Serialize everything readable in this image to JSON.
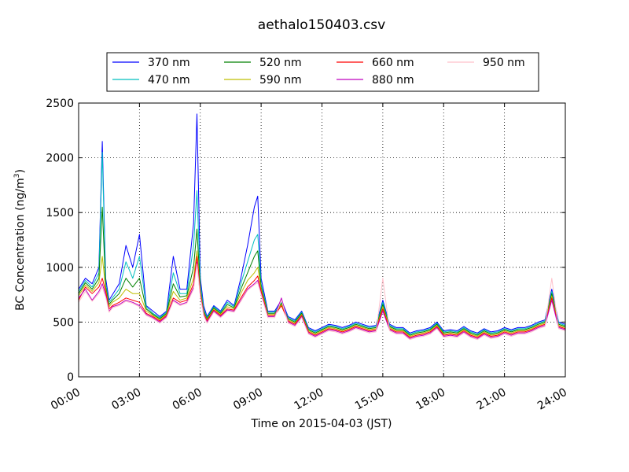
{
  "chart_data": {
    "type": "line",
    "title": "aethalo150403.csv",
    "xlabel": "Time on 2015-04-03 (JST)",
    "ylabel_main": "BC Concentration (ng/m",
    "ylabel_sup": "3",
    "ylabel_close": ")",
    "xlim": [
      "00:00",
      "24:00"
    ],
    "ylim": [
      0,
      2500
    ],
    "grid": true,
    "legend_position": "top",
    "x_ticks": [
      "00:00",
      "03:00",
      "06:00",
      "09:00",
      "12:00",
      "15:00",
      "18:00",
      "21:00",
      "24:00"
    ],
    "y_ticks": [
      "0",
      "500",
      "1000",
      "1500",
      "2000",
      "2500"
    ],
    "x": [
      "00:00",
      "00:20",
      "00:40",
      "01:00",
      "01:10",
      "01:20",
      "01:30",
      "01:40",
      "02:00",
      "02:20",
      "02:40",
      "03:00",
      "03:20",
      "03:40",
      "04:00",
      "04:20",
      "04:40",
      "05:00",
      "05:20",
      "05:40",
      "05:50",
      "06:00",
      "06:10",
      "06:20",
      "06:40",
      "07:00",
      "07:20",
      "07:40",
      "08:00",
      "08:20",
      "08:40",
      "08:50",
      "09:00",
      "09:20",
      "09:40",
      "10:00",
      "10:20",
      "10:40",
      "11:00",
      "11:20",
      "11:40",
      "12:00",
      "12:20",
      "12:40",
      "13:00",
      "13:20",
      "13:40",
      "14:00",
      "14:20",
      "14:40",
      "15:00",
      "15:20",
      "15:40",
      "16:00",
      "16:20",
      "16:40",
      "17:00",
      "17:20",
      "17:40",
      "18:00",
      "18:20",
      "18:40",
      "19:00",
      "19:20",
      "19:40",
      "20:00",
      "20:20",
      "20:40",
      "21:00",
      "21:20",
      "21:40",
      "22:00",
      "22:20",
      "22:40",
      "23:00",
      "23:20",
      "23:40",
      "24:00"
    ],
    "series": [
      {
        "name": "370 nm",
        "color": "#0000ff",
        "values": [
          800,
          900,
          850,
          1000,
          2150,
          900,
          700,
          750,
          850,
          1200,
          1000,
          1300,
          650,
          600,
          550,
          600,
          1100,
          800,
          800,
          1400,
          2400,
          900,
          650,
          550,
          650,
          600,
          700,
          650,
          900,
          1200,
          1550,
          1650,
          900,
          600,
          600,
          700,
          550,
          520,
          600,
          450,
          420,
          450,
          480,
          470,
          450,
          470,
          500,
          480,
          460,
          470,
          700,
          480,
          450,
          450,
          400,
          420,
          430,
          450,
          500,
          420,
          430,
          420,
          460,
          420,
          400,
          440,
          410,
          420,
          450,
          430,
          450,
          450,
          470,
          500,
          520,
          800,
          500,
          480
        ]
      },
      {
        "name": "470 nm",
        "color": "#00bfbf",
        "values": [
          780,
          880,
          820,
          950,
          2050,
          850,
          680,
          720,
          800,
          1050,
          900,
          1100,
          640,
          580,
          540,
          590,
          950,
          760,
          760,
          1200,
          1700,
          850,
          620,
          540,
          640,
          590,
          680,
          640,
          850,
          1050,
          1250,
          1300,
          850,
          590,
          590,
          680,
          540,
          510,
          590,
          440,
          410,
          440,
          470,
          460,
          440,
          460,
          490,
          470,
          450,
          460,
          680,
          470,
          440,
          440,
          390,
          410,
          420,
          440,
          490,
          410,
          420,
          410,
          450,
          410,
          390,
          430,
          400,
          410,
          440,
          420,
          440,
          440,
          460,
          490,
          510,
          780,
          490,
          470
        ]
      },
      {
        "name": "520 nm",
        "color": "#008000",
        "values": [
          760,
          860,
          800,
          900,
          1550,
          820,
          660,
          700,
          760,
          900,
          820,
          900,
          620,
          570,
          530,
          580,
          850,
          730,
          740,
          1000,
          1350,
          800,
          600,
          530,
          630,
          580,
          660,
          630,
          800,
          950,
          1100,
          1150,
          820,
          580,
          580,
          670,
          530,
          500,
          580,
          430,
          400,
          430,
          460,
          450,
          430,
          450,
          480,
          460,
          440,
          450,
          660,
          460,
          430,
          430,
          380,
          400,
          410,
          430,
          480,
          400,
          410,
          400,
          440,
          400,
          380,
          420,
          390,
          400,
          430,
          410,
          430,
          430,
          450,
          480,
          500,
          760,
          480,
          460
        ]
      },
      {
        "name": "590 nm",
        "color": "#bfbf00",
        "values": [
          740,
          840,
          780,
          860,
          1100,
          800,
          640,
          680,
          720,
          800,
          760,
          760,
          600,
          560,
          520,
          570,
          780,
          700,
          720,
          900,
          1150,
          780,
          590,
          520,
          620,
          570,
          640,
          620,
          760,
          880,
          950,
          1000,
          800,
          570,
          570,
          660,
          520,
          490,
          570,
          420,
          390,
          420,
          450,
          440,
          420,
          440,
          470,
          450,
          430,
          440,
          640,
          450,
          420,
          420,
          370,
          390,
          400,
          420,
          470,
          390,
          400,
          390,
          430,
          390,
          370,
          410,
          380,
          390,
          420,
          400,
          420,
          420,
          440,
          470,
          490,
          740,
          470,
          450
        ]
      },
      {
        "name": "660 nm",
        "color": "#ff0000",
        "values": [
          700,
          820,
          760,
          820,
          900,
          780,
          620,
          650,
          680,
          720,
          700,
          680,
          580,
          550,
          510,
          560,
          720,
          680,
          700,
          850,
          1100,
          760,
          580,
          510,
          610,
          560,
          620,
          610,
          720,
          820,
          880,
          920,
          780,
          560,
          560,
          650,
          510,
          480,
          560,
          410,
          380,
          410,
          440,
          430,
          410,
          430,
          460,
          440,
          420,
          430,
          620,
          440,
          410,
          410,
          360,
          380,
          390,
          410,
          460,
          380,
          390,
          380,
          420,
          380,
          360,
          400,
          370,
          380,
          410,
          390,
          410,
          410,
          430,
          460,
          480,
          720,
          460,
          440
        ]
      },
      {
        "name": "880 nm",
        "color": "#bf00bf",
        "values": [
          720,
          800,
          700,
          780,
          850,
          750,
          600,
          640,
          660,
          700,
          680,
          650,
          570,
          540,
          500,
          550,
          700,
          660,
          680,
          820,
          1050,
          740,
          570,
          500,
          600,
          550,
          610,
          600,
          700,
          800,
          850,
          880,
          760,
          550,
          550,
          720,
          500,
          470,
          550,
          400,
          370,
          400,
          430,
          420,
          400,
          420,
          450,
          430,
          410,
          420,
          600,
          430,
          400,
          400,
          350,
          370,
          380,
          400,
          450,
          370,
          380,
          370,
          410,
          370,
          350,
          390,
          360,
          370,
          400,
          380,
          400,
          400,
          420,
          450,
          470,
          700,
          450,
          430
        ]
      },
      {
        "name": "950 nm",
        "color": "#ffc0cb",
        "values": [
          680,
          780,
          690,
          760,
          820,
          730,
          590,
          630,
          650,
          690,
          670,
          640,
          560,
          530,
          490,
          540,
          690,
          650,
          670,
          800,
          1030,
          730,
          560,
          490,
          590,
          540,
          600,
          590,
          690,
          790,
          840,
          860,
          750,
          540,
          540,
          700,
          490,
          460,
          540,
          390,
          360,
          390,
          420,
          410,
          390,
          410,
          440,
          420,
          400,
          410,
          900,
          420,
          390,
          390,
          340,
          360,
          370,
          390,
          440,
          360,
          370,
          360,
          400,
          360,
          340,
          380,
          350,
          360,
          390,
          370,
          390,
          390,
          410,
          440,
          460,
          900,
          440,
          420
        ]
      }
    ]
  }
}
